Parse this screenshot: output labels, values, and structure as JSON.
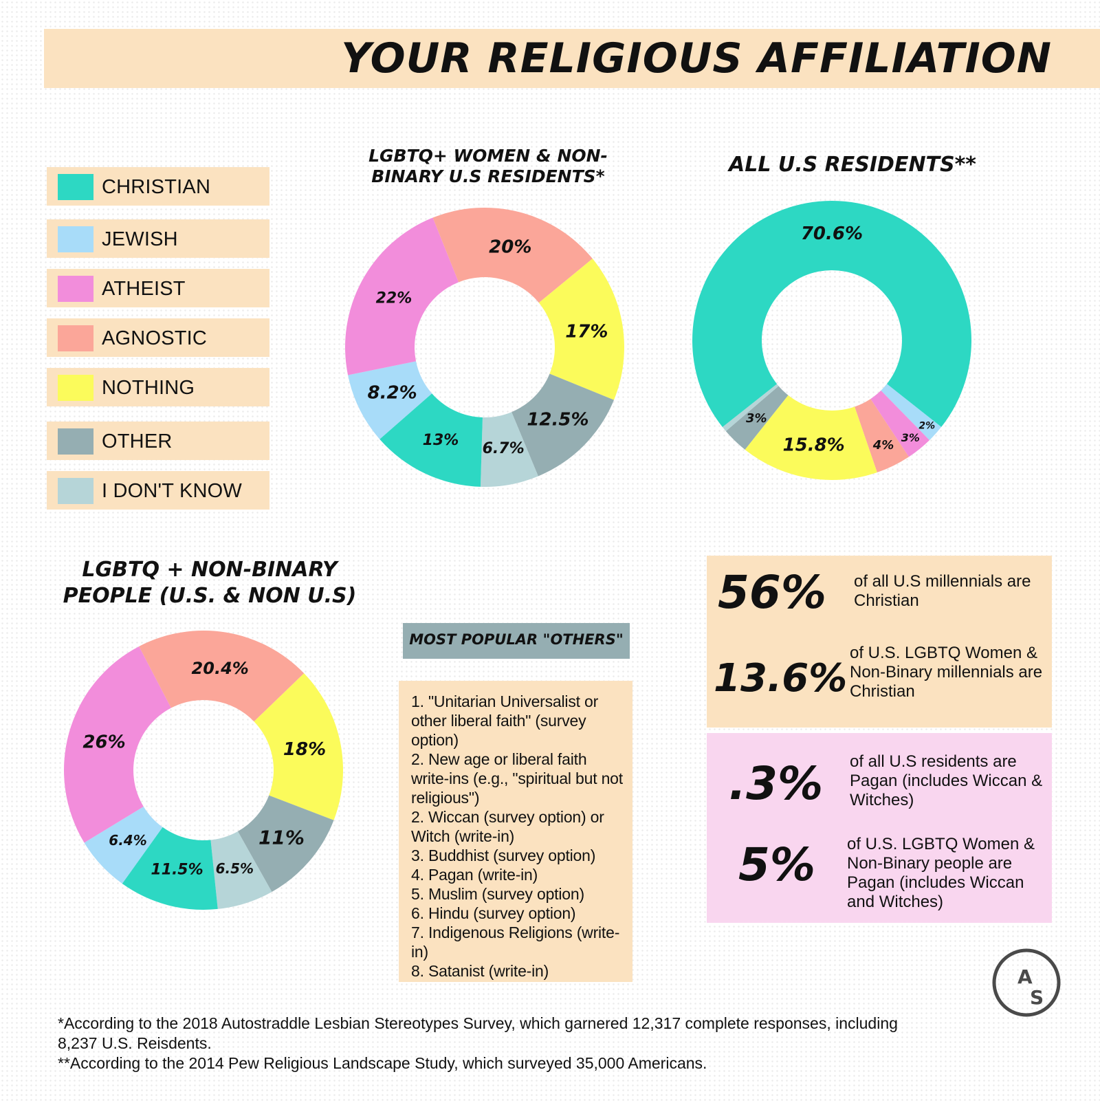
{
  "title": "YOUR RELIGIOUS AFFILIATION",
  "legend": [
    {
      "label": "CHRISTIAN",
      "color": "#2dd8c3"
    },
    {
      "label": "JEWISH",
      "color": "#a8dcf9"
    },
    {
      "label": "ATHEIST",
      "color": "#f28ddb"
    },
    {
      "label": "AGNOSTIC",
      "color": "#fba699"
    },
    {
      "label": "NOTHING",
      "color": "#fbfb5b"
    },
    {
      "label": "OTHER",
      "color": "#95aeb2"
    },
    {
      "label": "I DON'T KNOW",
      "color": "#b6d5d8"
    }
  ],
  "chart_data": [
    {
      "type": "pie",
      "title_lines": [
        "LGBTQ+ WOMEN & NON-",
        "BINARY U.S RESIDENTS*"
      ],
      "categories": [
        "CHRISTIAN",
        "JEWISH",
        "ATHEIST",
        "AGNOSTIC",
        "NOTHING",
        "OTHER",
        "I DON'T KNOW"
      ],
      "values": [
        13,
        8.2,
        22,
        20,
        17,
        12.5,
        6.7
      ],
      "labels": [
        "13%",
        "8.2%",
        "22%",
        "20%",
        "17%",
        "12.5%",
        "6.7%"
      ]
    },
    {
      "type": "pie",
      "title_lines": [
        "ALL U.S RESIDENTS**"
      ],
      "categories": [
        "CHRISTIAN",
        "JEWISH",
        "ATHEIST",
        "AGNOSTIC",
        "NOTHING",
        "OTHER",
        "I DON'T KNOW"
      ],
      "values": [
        70.6,
        2,
        3,
        4,
        15.8,
        3,
        0.6
      ],
      "labels": [
        "70.6%",
        "2%",
        "3%",
        "4%",
        "15.8%",
        "3%",
        ""
      ]
    },
    {
      "type": "pie",
      "title_lines": [
        "LGBTQ + NON-BINARY",
        "PEOPLE (U.S. & NON U.S)"
      ],
      "categories": [
        "CHRISTIAN",
        "JEWISH",
        "ATHEIST",
        "AGNOSTIC",
        "NOTHING",
        "OTHER",
        "I DON'T KNOW"
      ],
      "values": [
        11.5,
        6.4,
        26,
        20.4,
        18,
        11,
        6.5
      ],
      "labels": [
        "11.5%",
        "6.4%",
        "26%",
        "20.4%",
        "18%",
        "11%",
        "6.5%"
      ]
    }
  ],
  "others": {
    "header": "MOST POPULAR \"OTHERS\"",
    "items": [
      "1. \"Unitarian Universalist or other liberal faith\" (survey option)",
      "2. New age or liberal faith write-ins (e.g., \"spiritual but not religious\")",
      "2. Wiccan (survey option) or Witch (write-in)",
      "3. Buddhist (survey option)",
      "4. Pagan (write-in)",
      "5. Muslim (survey option)",
      "6. Hindu (survey option)",
      "7. Indigenous Religions (write-in)",
      "8. Satanist (write-in)"
    ]
  },
  "stats": {
    "christian": [
      {
        "value": "56%",
        "text": "of all U.S millennials are Christian"
      },
      {
        "value": "13.6%",
        "text": "of U.S. LGBTQ Women & Non-Binary millennials are Christian"
      }
    ],
    "pagan": [
      {
        "value": ".3%",
        "text": "of all U.S residents are Pagan (includes Wiccan & Witches)"
      },
      {
        "value": "5%",
        "text": "of U.S. LGBTQ Women & Non-Binary people are Pagan (includes Wiccan and Witches)"
      }
    ],
    "christian_bg": "#fbe2c0",
    "pagan_bg": "#f9d6ef"
  },
  "footnotes": [
    "*According to the 2018 Autostraddle Lesbian Stereotypes Survey, which garnered 12,317 complete responses, including 8,237 U.S. Reisdents.",
    "**According to the 2014 Pew Religious Landscape Study, which surveyed 35,000 Americans."
  ],
  "logo": {
    "letters": [
      "A",
      "S"
    ],
    "icon": "autostraddle-logo-icon"
  }
}
